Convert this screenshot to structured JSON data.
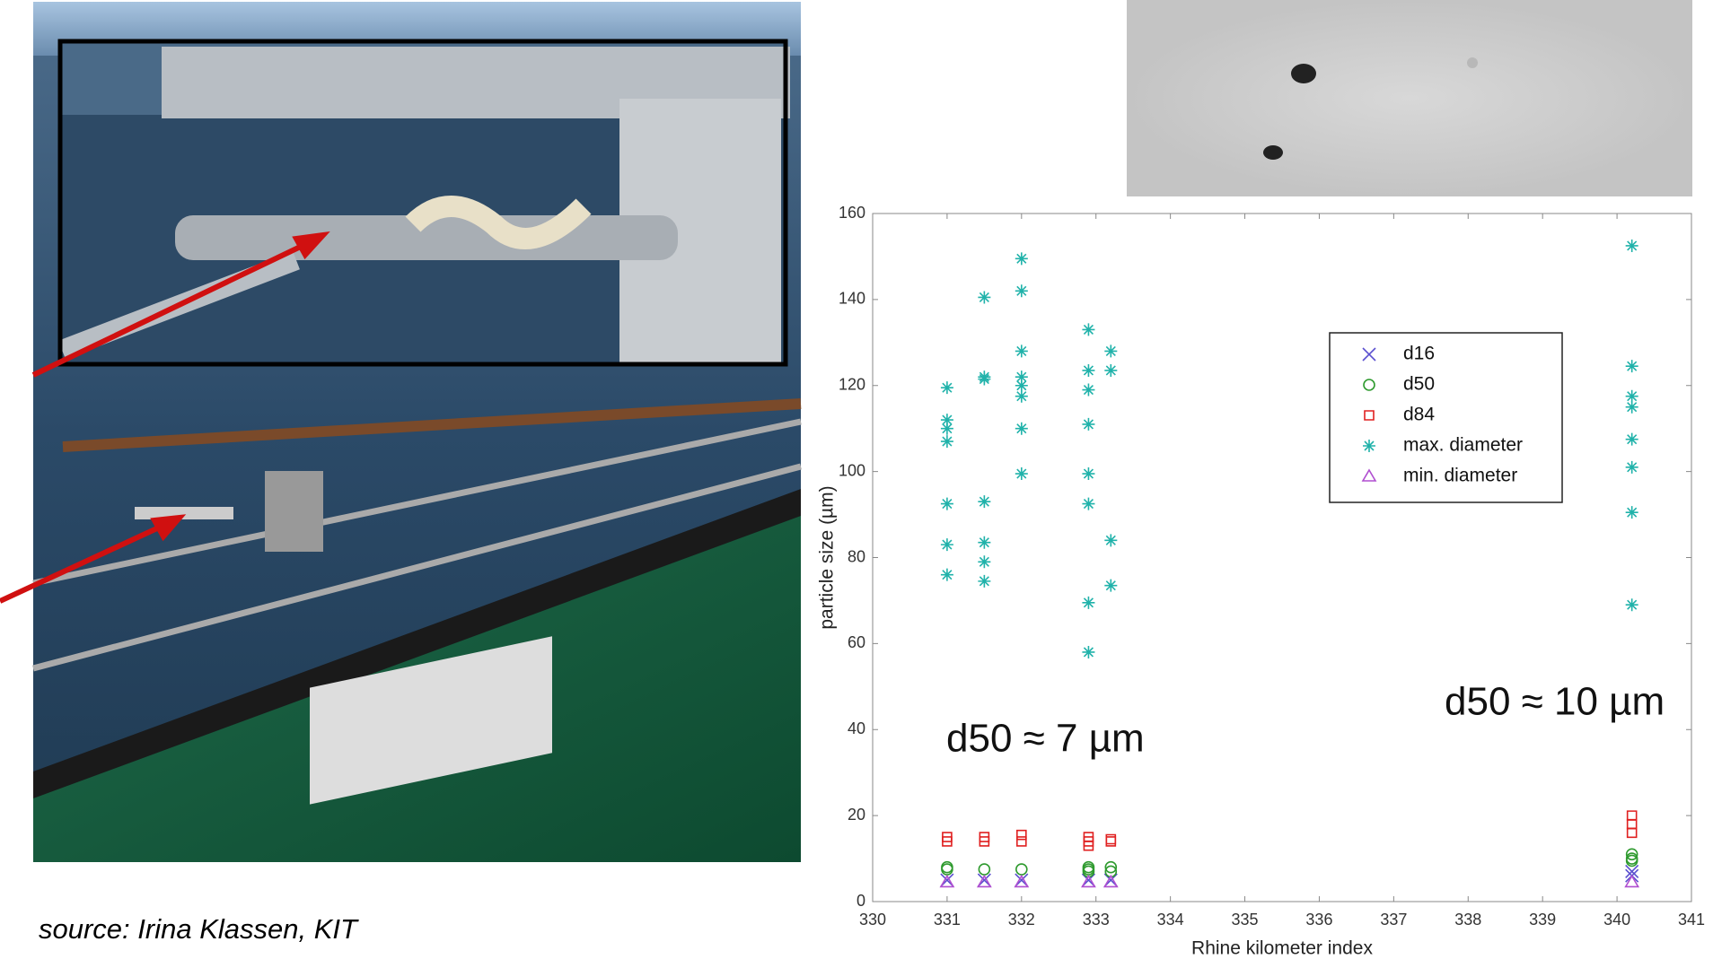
{
  "source": "source: Irina Klassen, KIT",
  "chart_data": {
    "type": "scatter",
    "x_label": "Rhine kilometer index",
    "y_label": "particle size (µm)",
    "xlim": [
      330,
      341
    ],
    "ylim": [
      0,
      160
    ],
    "xticks": [
      330,
      331,
      332,
      333,
      334,
      335,
      336,
      337,
      338,
      339,
      340,
      341
    ],
    "yticks": [
      0,
      20,
      40,
      60,
      80,
      100,
      120,
      140,
      160
    ],
    "annotations": [
      "d50 ≈ 7 µm",
      "d50 ≈ 10 µm"
    ],
    "series": [
      {
        "name": "d16",
        "color": "#5a4fcf",
        "marker": "x",
        "x": [
          331,
          331.5,
          332,
          332.9,
          333.2,
          340.2,
          340.2
        ],
        "values": [
          5,
          5,
          5,
          5,
          5,
          6,
          7
        ]
      },
      {
        "name": "d50",
        "color": "#2e9a2e",
        "marker": "o",
        "x": [
          331,
          331,
          331.5,
          332,
          332.9,
          332.9,
          332.9,
          333.2,
          333.2,
          340.2,
          340.2,
          340.2
        ],
        "values": [
          7.5,
          8,
          7.5,
          7.5,
          7,
          7.5,
          8,
          7,
          8,
          9.5,
          10,
          11
        ]
      },
      {
        "name": "d84",
        "color": "#e02020",
        "marker": "s",
        "x": [
          331,
          331,
          331.5,
          331.5,
          332,
          332,
          332.9,
          332.9,
          332.9,
          333.2,
          333.2,
          340.2,
          340.2,
          340.2
        ],
        "values": [
          14,
          15,
          14,
          15,
          14,
          15.5,
          13,
          14,
          15,
          14,
          14.5,
          16,
          18,
          20
        ]
      },
      {
        "name": "max. diameter",
        "color": "#20b2aa",
        "marker": "+",
        "x": [
          331,
          331,
          331,
          331,
          331,
          331,
          331,
          331.5,
          331.5,
          331.5,
          331.5,
          331.5,
          331.5,
          331.5,
          332,
          332,
          332,
          332,
          332,
          332,
          332,
          332,
          332.9,
          332.9,
          332.9,
          332.9,
          332.9,
          332.9,
          332.9,
          332.9,
          333.2,
          333.2,
          333.2,
          333.2,
          340.2,
          340.2,
          340.2,
          340.2,
          340.2,
          340.2,
          340.2,
          340.2
        ],
        "values": [
          119.5,
          112,
          110,
          107,
          92.5,
          83,
          76,
          140.5,
          122,
          121.5,
          93,
          83.5,
          79,
          74.5,
          149.5,
          142,
          128,
          122,
          120,
          117.5,
          110,
          99.5,
          133,
          123.5,
          119,
          111,
          99.5,
          92.5,
          69.5,
          58,
          128,
          123.5,
          84,
          73.5,
          152.5,
          124.5,
          117.5,
          115,
          107.5,
          101,
          90.5,
          69
        ]
      },
      {
        "name": "min. diameter",
        "color": "#b04fd0",
        "marker": "^",
        "x": [
          331,
          331.5,
          332,
          332.9,
          333.2,
          340.2
        ],
        "values": [
          4.5,
          4.5,
          4.5,
          4.5,
          4.5,
          4.5
        ]
      }
    ]
  }
}
